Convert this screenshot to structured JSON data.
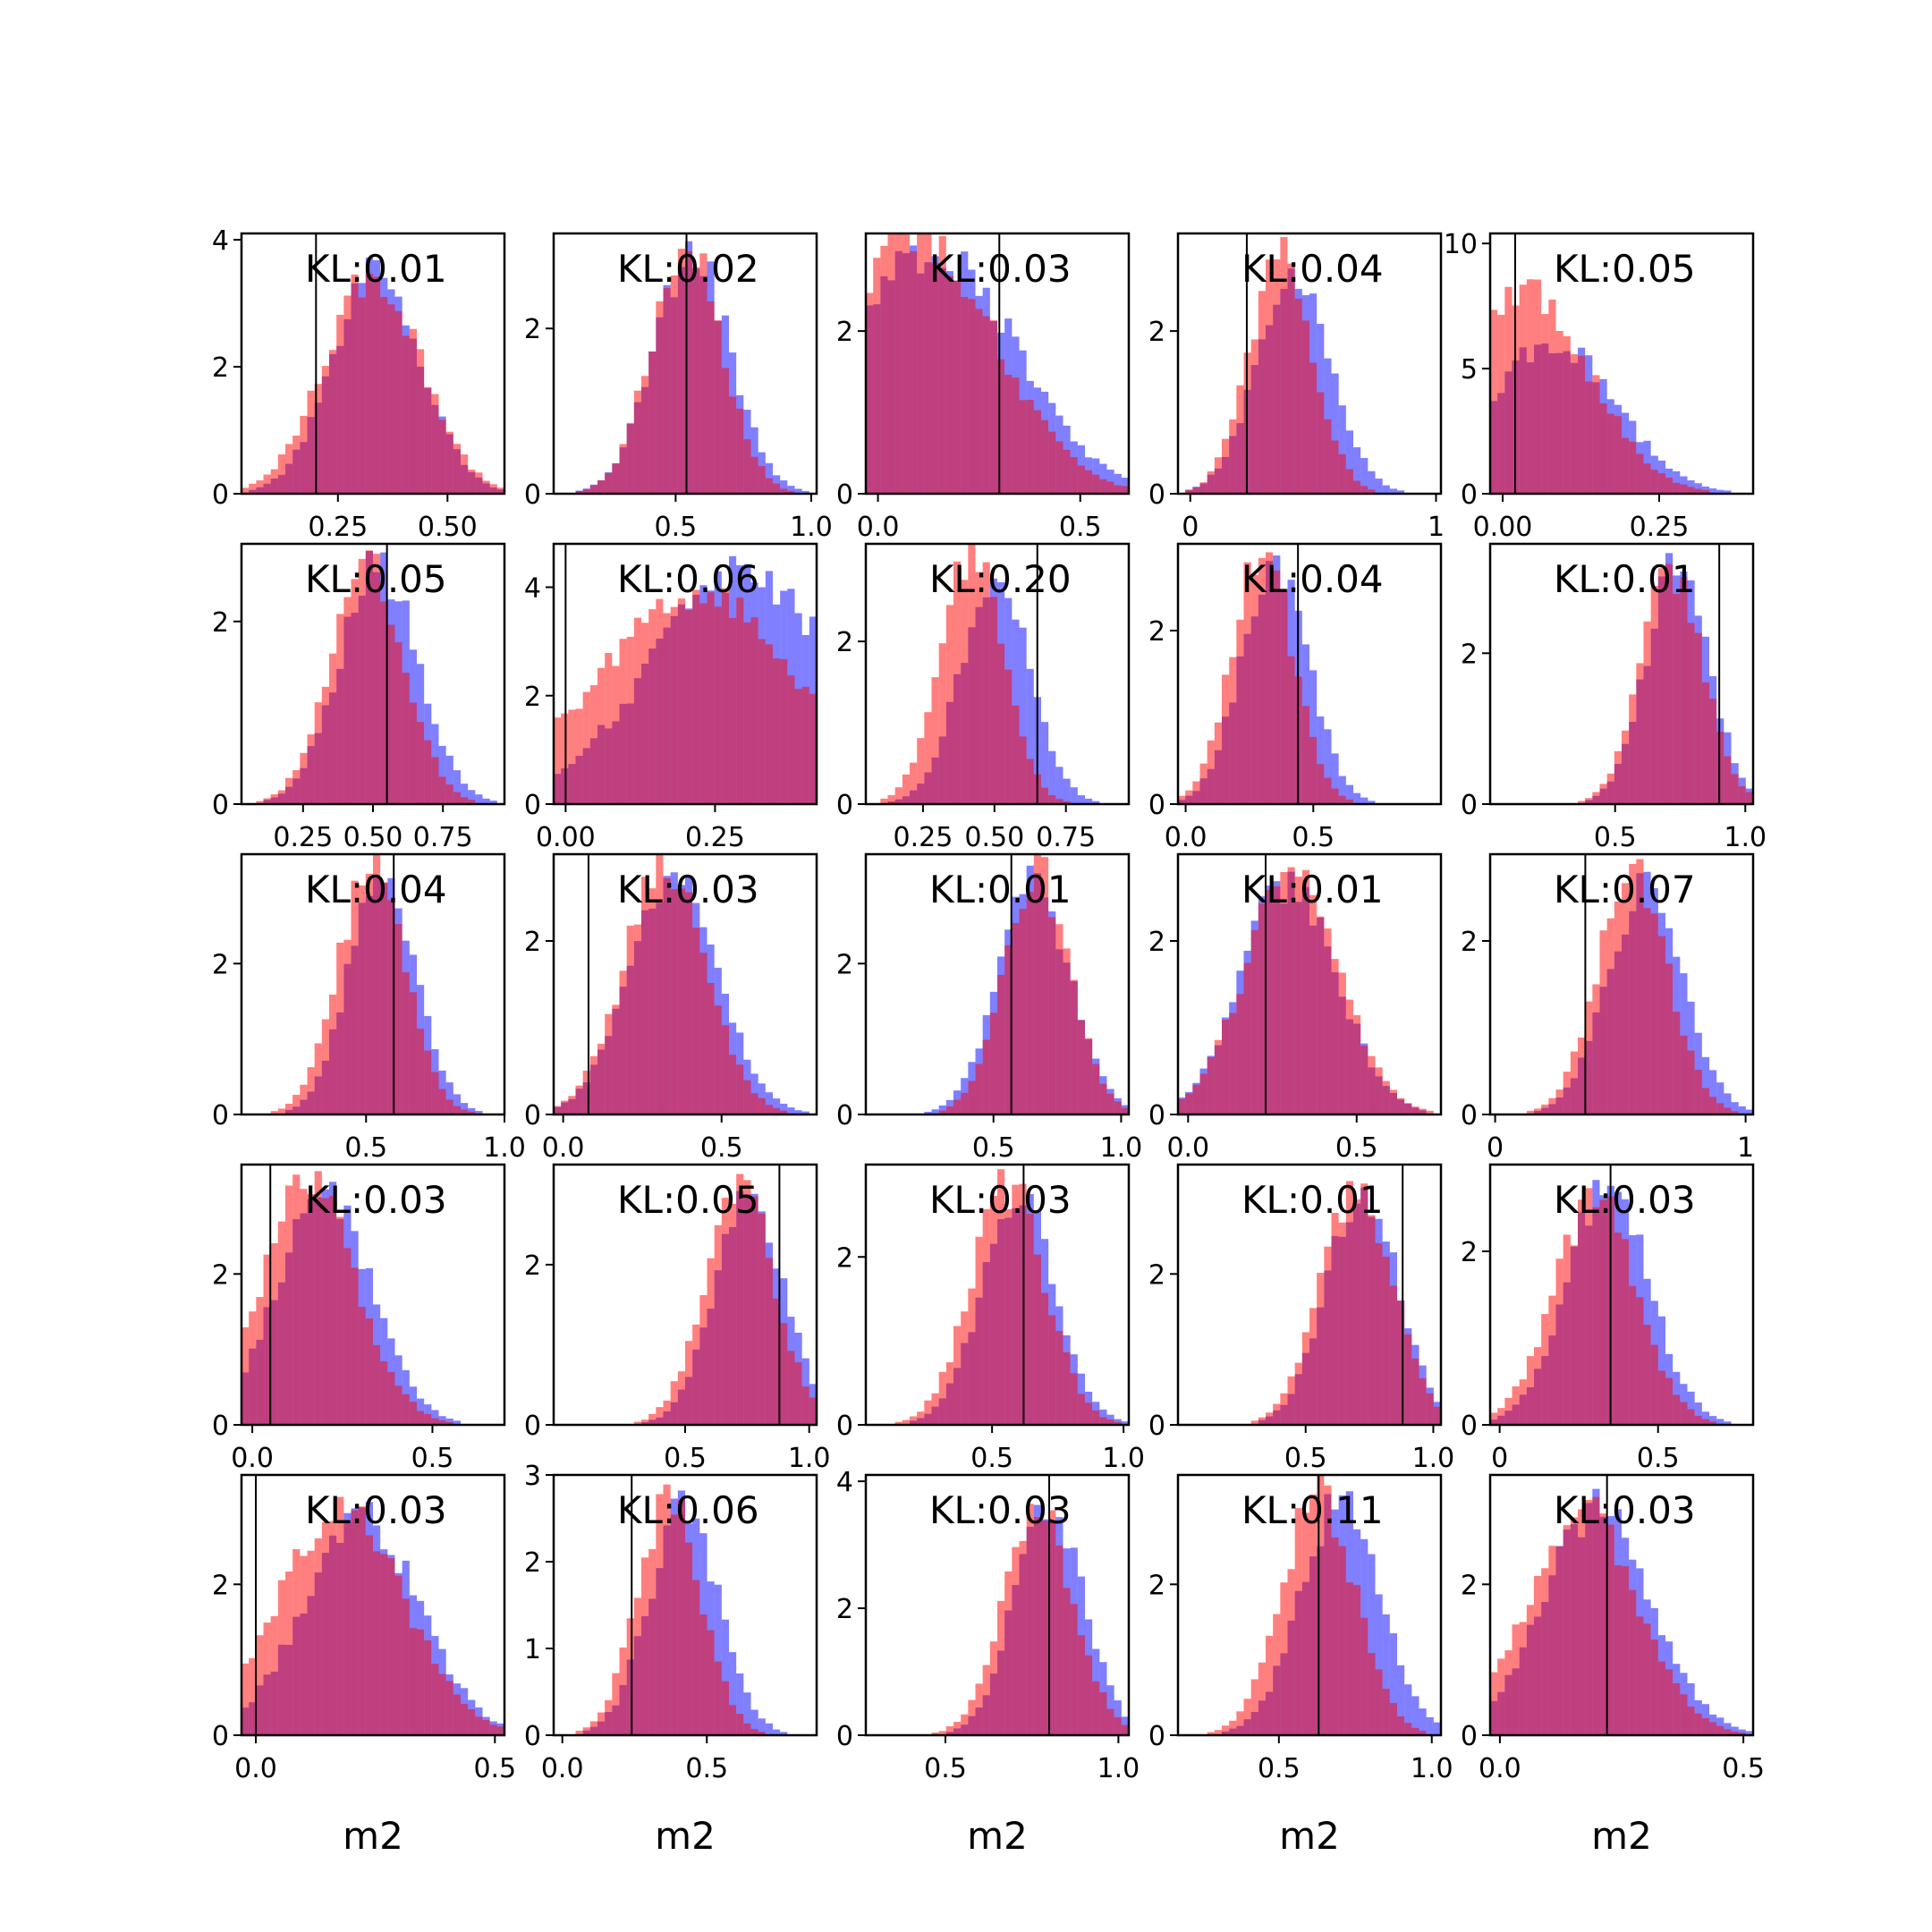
{
  "chart_data": {
    "type": "bar",
    "layout": "grid-6x5",
    "series": [
      {
        "name": "blue",
        "color": "#0000ff",
        "opacity": 0.5
      },
      {
        "name": "red",
        "color": "#ff0000",
        "opacity": 0.5
      }
    ],
    "subplots": [
      {
        "kl": "KL:0.01",
        "xlim": [
          0.03,
          0.63
        ],
        "ylim": [
          0,
          4.1
        ],
        "yticks": [
          0,
          2,
          4
        ],
        "ytick_labels": [
          "0",
          "2",
          "4"
        ],
        "xticks": [
          0.25,
          0.5
        ],
        "xtick_labels": [
          "0.25",
          "0.50"
        ],
        "vline": 0.2,
        "blue": {
          "mean": 0.34,
          "sd": 0.1,
          "peak": 3.5
        },
        "red": {
          "mean": 0.33,
          "sd": 0.11,
          "peak": 3.4
        },
        "xlabel": ""
      },
      {
        "kl": "KL:0.02",
        "xlim": [
          0.05,
          1.02
        ],
        "ylim": [
          0,
          3.15
        ],
        "yticks": [
          0,
          2
        ],
        "ytick_labels": [
          "0",
          "2"
        ],
        "xticks": [
          0.5,
          1.0
        ],
        "xtick_labels": [
          "0.5",
          "1.0"
        ],
        "vline": 0.54,
        "blue": {
          "mean": 0.56,
          "sd": 0.14,
          "peak": 2.9
        },
        "red": {
          "mean": 0.54,
          "sd": 0.13,
          "peak": 3.0
        },
        "xlabel": ""
      },
      {
        "kl": "KL:0.03",
        "xlim": [
          -0.03,
          0.62
        ],
        "ylim": [
          0,
          3.2
        ],
        "yticks": [
          0,
          2
        ],
        "ytick_labels": [
          "0",
          "2"
        ],
        "xticks": [
          0.0,
          0.5
        ],
        "xtick_labels": [
          "0.0",
          "0.5"
        ],
        "vline": 0.3,
        "blue": {
          "mean": 0.14,
          "sd": 0.2,
          "peak": 3.0
        },
        "red": {
          "mean": 0.1,
          "sd": 0.19,
          "peak": 3.2
        },
        "xlabel": ""
      },
      {
        "kl": "KL:0.04",
        "xlim": [
          -0.05,
          1.02
        ],
        "ylim": [
          0,
          3.2
        ],
        "yticks": [
          0,
          2
        ],
        "ytick_labels": [
          "0",
          "2"
        ],
        "xticks": [
          0.0,
          1.0
        ],
        "xtick_labels": [
          "0",
          "1"
        ],
        "vline": 0.23,
        "blue": {
          "mean": 0.42,
          "sd": 0.15,
          "peak": 2.65
        },
        "red": {
          "mean": 0.37,
          "sd": 0.13,
          "peak": 2.9
        },
        "xlabel": ""
      },
      {
        "kl": "KL:0.05",
        "xlim": [
          -0.02,
          0.4
        ],
        "ylim": [
          0,
          10.4
        ],
        "yticks": [
          0,
          5,
          10
        ],
        "ytick_labels": [
          "0",
          "5",
          "10"
        ],
        "xticks": [
          0.0,
          0.25
        ],
        "xtick_labels": [
          "0.00",
          "0.25"
        ],
        "vline": 0.02,
        "blue": {
          "mean": 0.08,
          "sd": 0.1,
          "peak": 6.0
        },
        "red": {
          "mean": 0.04,
          "sd": 0.1,
          "peak": 8.0
        },
        "xlabel": ""
      },
      {
        "kl": "KL:0.05",
        "xlim": [
          0.03,
          0.97
        ],
        "ylim": [
          0,
          2.85
        ],
        "yticks": [
          0,
          2
        ],
        "ytick_labels": [
          "0",
          "2"
        ],
        "xticks": [
          0.25,
          0.5,
          0.75
        ],
        "xtick_labels": [
          "0.25",
          "0.50",
          "0.75"
        ],
        "vline": 0.55,
        "blue": {
          "mean": 0.52,
          "sd": 0.14,
          "peak": 2.6
        },
        "red": {
          "mean": 0.48,
          "sd": 0.13,
          "peak": 2.7
        },
        "xlabel": ""
      },
      {
        "kl": "KL:0.06",
        "xlim": [
          -0.02,
          0.42
        ],
        "ylim": [
          0,
          4.8
        ],
        "yticks": [
          0,
          2,
          4
        ],
        "ytick_labels": [
          "0",
          "2",
          "4"
        ],
        "xticks": [
          0.0,
          0.25
        ],
        "xtick_labels": [
          "0.00",
          "0.25"
        ],
        "vline": 0.0,
        "blue": {
          "mean": 0.3,
          "sd": 0.16,
          "peak": 4.2
        },
        "red": {
          "mean": 0.22,
          "sd": 0.17,
          "peak": 3.8
        },
        "xlabel": ""
      },
      {
        "kl": "KL:0.20",
        "xlim": [
          0.05,
          0.97
        ],
        "ylim": [
          0,
          3.2
        ],
        "yticks": [
          0,
          2
        ],
        "ytick_labels": [
          "0",
          "2"
        ],
        "xticks": [
          0.25,
          0.5,
          0.75
        ],
        "xtick_labels": [
          "0.25",
          "0.50",
          "0.75"
        ],
        "vline": 0.65,
        "blue": {
          "mean": 0.5,
          "sd": 0.12,
          "peak": 2.8
        },
        "red": {
          "mean": 0.42,
          "sd": 0.11,
          "peak": 3.05
        },
        "xlabel": ""
      },
      {
        "kl": "KL:0.04",
        "xlim": [
          -0.03,
          1.0
        ],
        "ylim": [
          0,
          3.0
        ],
        "yticks": [
          0,
          2
        ],
        "ytick_labels": [
          "0",
          "2"
        ],
        "xticks": [
          0.0,
          0.5
        ],
        "xtick_labels": [
          "0.0",
          "0.5"
        ],
        "vline": 0.44,
        "blue": {
          "mean": 0.35,
          "sd": 0.13,
          "peak": 2.8
        },
        "red": {
          "mean": 0.3,
          "sd": 0.12,
          "peak": 2.9
        },
        "xlabel": ""
      },
      {
        "kl": "KL:0.01",
        "xlim": [
          0.02,
          1.03
        ],
        "ylim": [
          0,
          3.45
        ],
        "yticks": [
          0,
          2
        ],
        "ytick_labels": [
          "0",
          "2"
        ],
        "xticks": [
          0.5,
          1.0
        ],
        "xtick_labels": [
          "0.5",
          "1.0"
        ],
        "vline": 0.9,
        "blue": {
          "mean": 0.74,
          "sd": 0.12,
          "peak": 3.2
        },
        "red": {
          "mean": 0.72,
          "sd": 0.12,
          "peak": 3.1
        },
        "xlabel": ""
      },
      {
        "kl": "KL:0.04",
        "xlim": [
          0.05,
          1.0
        ],
        "ylim": [
          0,
          3.45
        ],
        "yticks": [
          0,
          2
        ],
        "ytick_labels": [
          "0",
          "2"
        ],
        "xticks": [
          0.5,
          1.0
        ],
        "xtick_labels": [
          "0.5",
          "1.0"
        ],
        "vline": 0.6,
        "blue": {
          "mean": 0.56,
          "sd": 0.12,
          "peak": 3.2
        },
        "red": {
          "mean": 0.52,
          "sd": 0.12,
          "peak": 3.3
        },
        "xlabel": ""
      },
      {
        "kl": "KL:0.03",
        "xlim": [
          -0.03,
          0.8
        ],
        "ylim": [
          0,
          3.0
        ],
        "yticks": [
          0,
          2
        ],
        "ytick_labels": [
          "0",
          "2"
        ],
        "xticks": [
          0.0,
          0.5
        ],
        "xtick_labels": [
          "0.0",
          "0.5"
        ],
        "vline": 0.08,
        "blue": {
          "mean": 0.35,
          "sd": 0.14,
          "peak": 2.7
        },
        "red": {
          "mean": 0.32,
          "sd": 0.13,
          "peak": 2.8
        },
        "xlabel": ""
      },
      {
        "kl": "KL:0.01",
        "xlim": [
          0.0,
          1.03
        ],
        "ylim": [
          0,
          3.45
        ],
        "yticks": [
          0,
          2
        ],
        "ytick_labels": [
          "0",
          "2"
        ],
        "xticks": [
          0.5,
          1.0
        ],
        "xtick_labels": [
          "0.5",
          "1.0"
        ],
        "vline": 0.57,
        "blue": {
          "mean": 0.66,
          "sd": 0.14,
          "peak": 3.1
        },
        "red": {
          "mean": 0.67,
          "sd": 0.13,
          "peak": 3.2
        },
        "xlabel": ""
      },
      {
        "kl": "KL:0.01",
        "xlim": [
          -0.03,
          0.75
        ],
        "ylim": [
          0,
          3.0
        ],
        "yticks": [
          0,
          2
        ],
        "ytick_labels": [
          "0",
          "2"
        ],
        "xticks": [
          0.0,
          0.5
        ],
        "xtick_labels": [
          "0.0",
          "0.5"
        ],
        "vline": 0.23,
        "blue": {
          "mean": 0.3,
          "sd": 0.14,
          "peak": 2.7
        },
        "red": {
          "mean": 0.31,
          "sd": 0.14,
          "peak": 2.75
        },
        "xlabel": ""
      },
      {
        "kl": "KL:0.07",
        "xlim": [
          -0.02,
          1.03
        ],
        "ylim": [
          0,
          3.0
        ],
        "yticks": [
          0,
          2
        ],
        "ytick_labels": [
          "0",
          "2"
        ],
        "xticks": [
          0.0,
          1.0
        ],
        "xtick_labels": [
          "0",
          "1"
        ],
        "vline": 0.36,
        "blue": {
          "mean": 0.6,
          "sd": 0.15,
          "peak": 2.6
        },
        "red": {
          "mean": 0.55,
          "sd": 0.14,
          "peak": 2.8
        },
        "xlabel": ""
      },
      {
        "kl": "KL:0.03",
        "xlim": [
          -0.03,
          0.7
        ],
        "ylim": [
          0,
          3.45
        ],
        "yticks": [
          0,
          2
        ],
        "ytick_labels": [
          "0",
          "2"
        ],
        "xticks": [
          0.0,
          0.5
        ],
        "xtick_labels": [
          "0.0",
          "0.5"
        ],
        "vline": 0.05,
        "blue": {
          "mean": 0.2,
          "sd": 0.13,
          "peak": 3.0
        },
        "red": {
          "mean": 0.16,
          "sd": 0.13,
          "peak": 3.2
        },
        "xlabel": ""
      },
      {
        "kl": "KL:0.05",
        "xlim": [
          -0.03,
          1.03
        ],
        "ylim": [
          0,
          3.25
        ],
        "yticks": [
          0,
          2
        ],
        "ytick_labels": [
          "0",
          "2"
        ],
        "xticks": [
          0.5,
          1.0
        ],
        "xtick_labels": [
          "0.5",
          "1.0"
        ],
        "vline": 0.88,
        "blue": {
          "mean": 0.76,
          "sd": 0.14,
          "peak": 2.9
        },
        "red": {
          "mean": 0.72,
          "sd": 0.14,
          "peak": 3.0
        },
        "xlabel": ""
      },
      {
        "kl": "KL:0.03",
        "xlim": [
          0.02,
          1.02
        ],
        "ylim": [
          0,
          3.1
        ],
        "yticks": [
          0,
          2
        ],
        "ytick_labels": [
          "0",
          "2"
        ],
        "xticks": [
          0.5,
          1.0
        ],
        "xtick_labels": [
          "0.5",
          "1.0"
        ],
        "vline": 0.62,
        "blue": {
          "mean": 0.6,
          "sd": 0.14,
          "peak": 2.7
        },
        "red": {
          "mean": 0.56,
          "sd": 0.14,
          "peak": 2.85
        },
        "xlabel": ""
      },
      {
        "kl": "KL:0.01",
        "xlim": [
          0.0,
          1.03
        ],
        "ylim": [
          0,
          3.45
        ],
        "yticks": [
          0,
          2
        ],
        "ytick_labels": [
          "0",
          "2"
        ],
        "xticks": [
          0.5,
          1.0
        ],
        "xtick_labels": [
          "0.5",
          "1.0"
        ],
        "vline": 0.88,
        "blue": {
          "mean": 0.72,
          "sd": 0.14,
          "peak": 3.1
        },
        "red": {
          "mean": 0.7,
          "sd": 0.14,
          "peak": 3.2
        },
        "xlabel": ""
      },
      {
        "kl": "KL:0.03",
        "xlim": [
          -0.03,
          0.8
        ],
        "ylim": [
          0,
          3.0
        ],
        "yticks": [
          0,
          2
        ],
        "ytick_labels": [
          "0",
          "2"
        ],
        "xticks": [
          0.0,
          0.5
        ],
        "xtick_labels": [
          "0",
          "0.5"
        ],
        "vline": 0.35,
        "blue": {
          "mean": 0.34,
          "sd": 0.13,
          "peak": 2.75
        },
        "red": {
          "mean": 0.3,
          "sd": 0.13,
          "peak": 2.6
        },
        "xlabel": ""
      },
      {
        "kl": "KL:0.03",
        "xlim": [
          -0.03,
          0.52
        ],
        "ylim": [
          0,
          3.45
        ],
        "yticks": [
          0,
          2
        ],
        "ytick_labels": [
          "0",
          "2"
        ],
        "xticks": [
          0.0,
          0.5
        ],
        "xtick_labels": [
          "0.0",
          "0.5"
        ],
        "vline": 0.0,
        "blue": {
          "mean": 0.22,
          "sd": 0.12,
          "peak": 2.9
        },
        "red": {
          "mean": 0.18,
          "sd": 0.13,
          "peak": 3.0
        },
        "xlabel": "m2"
      },
      {
        "kl": "KL:0.06",
        "xlim": [
          -0.03,
          0.88
        ],
        "ylim": [
          0,
          3.0
        ],
        "yticks": [
          0,
          1,
          2,
          3
        ],
        "ytick_labels": [
          "0",
          "1",
          "2",
          "3"
        ],
        "xticks": [
          0.0,
          0.5
        ],
        "xtick_labels": [
          "0.0",
          "0.5"
        ],
        "vline": 0.24,
        "blue": {
          "mean": 0.42,
          "sd": 0.12,
          "peak": 2.6
        },
        "red": {
          "mean": 0.37,
          "sd": 0.11,
          "peak": 2.7
        },
        "xlabel": "m2"
      },
      {
        "kl": "KL:0.03",
        "xlim": [
          0.27,
          1.03
        ],
        "ylim": [
          0,
          4.1
        ],
        "yticks": [
          0,
          2,
          4
        ],
        "ytick_labels": [
          "0",
          "2",
          "4"
        ],
        "xticks": [
          0.5,
          1.0
        ],
        "xtick_labels": [
          "0.5",
          "1.0"
        ],
        "vline": 0.8,
        "blue": {
          "mean": 0.8,
          "sd": 0.1,
          "peak": 3.6
        },
        "red": {
          "mean": 0.77,
          "sd": 0.1,
          "peak": 3.5
        },
        "xlabel": "m2"
      },
      {
        "kl": "KL:0.11",
        "xlim": [
          0.17,
          1.03
        ],
        "ylim": [
          0,
          3.45
        ],
        "yticks": [
          0,
          2
        ],
        "ytick_labels": [
          "0",
          "2"
        ],
        "xticks": [
          0.5,
          1.0
        ],
        "xtick_labels": [
          "0.5",
          "1.0"
        ],
        "vline": 0.63,
        "blue": {
          "mean": 0.7,
          "sd": 0.13,
          "peak": 3.1
        },
        "red": {
          "mean": 0.63,
          "sd": 0.12,
          "peak": 3.2
        },
        "xlabel": "m2"
      },
      {
        "kl": "KL:0.03",
        "xlim": [
          -0.02,
          0.52
        ],
        "ylim": [
          0,
          3.45
        ],
        "yticks": [
          0,
          2
        ],
        "ytick_labels": [
          "0",
          "2"
        ],
        "xticks": [
          0.0,
          0.5
        ],
        "xtick_labels": [
          "0.0",
          "0.5"
        ],
        "vline": 0.22,
        "blue": {
          "mean": 0.2,
          "sd": 0.11,
          "peak": 3.0
        },
        "red": {
          "mean": 0.17,
          "sd": 0.11,
          "peak": 3.05
        },
        "xlabel": "m2"
      }
    ]
  }
}
